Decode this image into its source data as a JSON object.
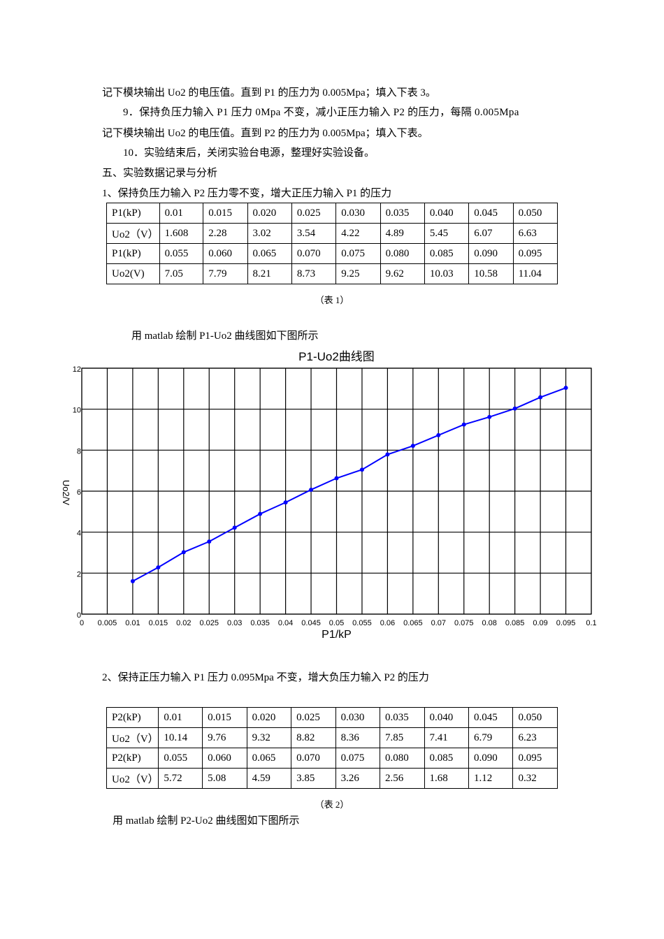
{
  "paragraphs": {
    "line1": "记下模块输出 Uo2 的电压值。直到 P1 的压力为 0.005Mpa；填入下表 3。",
    "line2": "9．保持负压力输入 P1 压力 0Mpa 不变，减小正压力输入 P2 的压力，每隔 0.005Mpa",
    "line3": "记下模块输出 Uo2 的电压值。直到 P2 的压力为 0.005Mpa；填入下表。",
    "line4": "10．实验结束后，关闭实验台电源，整理好实验设备。",
    "section5": "五、实验数据记录与分析",
    "sub1": "1、保持负压力输入 P2 压力零不变，增大正压力输入 P1 的压力",
    "plot1_intro": "用 matlab 绘制 P1-Uo2 曲线图如下图所示",
    "sub2": "2、保持正压力输入 P1 压力 0.095Mpa 不变，增大负压力输入 P2 的压力",
    "plot2_intro": "用 matlab 绘制 P2-Uo2 曲线图如下图所示"
  },
  "table1": {
    "caption": "（表 1）",
    "rows": [
      [
        "P1(kP)",
        "0.01",
        "0.015",
        "0.020",
        "0.025",
        "0.030",
        "0.035",
        "0.040",
        "0.045",
        "0.050"
      ],
      [
        "Uo2（V）",
        "1.608",
        "2.28",
        "3.02",
        "3.54",
        "4.22",
        "4.89",
        "5.45",
        "6.07",
        "6.63"
      ],
      [
        "P1(kP)",
        "0.055",
        "0.060",
        "0.065",
        "0.070",
        "0.075",
        "0.080",
        "0.085",
        "0.090",
        "0.095"
      ],
      [
        "Uo2(V)",
        "7.05",
        "7.79",
        "8.21",
        "8.73",
        "9.25",
        "9.62",
        "10.03",
        "10.58",
        "11.04"
      ]
    ]
  },
  "table2": {
    "caption": "（表 2）",
    "rows": [
      [
        "P2(kP)",
        "0.01",
        "0.015",
        "0.020",
        "0.025",
        "0.030",
        "0.035",
        "0.040",
        "0.045",
        "0.050"
      ],
      [
        "Uo2（V）",
        "10.14",
        "9.76",
        "9.32",
        "8.82",
        "8.36",
        "7.85",
        "7.41",
        "6.79",
        "6.23"
      ],
      [
        "P2(kP)",
        "0.055",
        "0.060",
        "0.065",
        "0.070",
        "0.075",
        "0.080",
        "0.085",
        "0.090",
        "0.095"
      ],
      [
        "Uo2（V）",
        "5.72",
        "5.08",
        "4.59",
        "3.85",
        "3.26",
        "2.56",
        "1.68",
        "1.12",
        "0.32"
      ]
    ]
  },
  "chart_data": {
    "type": "line",
    "title": "P1-Uo2曲线图",
    "xlabel": "P1/kP",
    "ylabel": "Uo2/V",
    "xlim": [
      0,
      0.1
    ],
    "ylim": [
      0,
      12
    ],
    "grid": true,
    "line_color": "#0000ff",
    "x_ticks": [
      "0",
      "0.005",
      "0.01",
      "0.015",
      "0.02",
      "0.025",
      "0.03",
      "0.035",
      "0.04",
      "0.045",
      "0.05",
      "0.055",
      "0.06",
      "0.065",
      "0.07",
      "0.075",
      "0.08",
      "0.085",
      "0.09",
      "0.095",
      "0.1"
    ],
    "y_ticks": [
      "0",
      "2",
      "4",
      "6",
      "8",
      "10",
      "12"
    ],
    "x": [
      0.01,
      0.015,
      0.02,
      0.025,
      0.03,
      0.035,
      0.04,
      0.045,
      0.05,
      0.055,
      0.06,
      0.065,
      0.07,
      0.075,
      0.08,
      0.085,
      0.09,
      0.095
    ],
    "series": [
      {
        "name": "Uo2",
        "values": [
          1.608,
          2.28,
          3.02,
          3.54,
          4.22,
          4.89,
          5.45,
          6.07,
          6.63,
          7.05,
          7.79,
          8.21,
          8.73,
          9.25,
          9.62,
          10.03,
          10.58,
          11.04
        ]
      }
    ]
  }
}
